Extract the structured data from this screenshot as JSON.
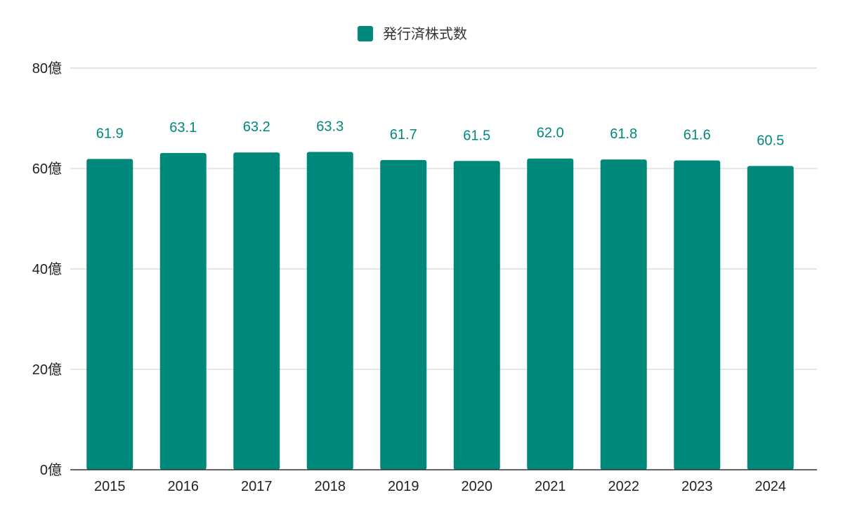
{
  "chart_data": {
    "type": "bar",
    "categories": [
      "2015",
      "2016",
      "2017",
      "2018",
      "2019",
      "2020",
      "2021",
      "2022",
      "2023",
      "2024"
    ],
    "series": [
      {
        "name": "発行済株式数",
        "values": [
          61.9,
          63.1,
          63.2,
          63.3,
          61.7,
          61.5,
          62.0,
          61.8,
          61.6,
          60.5
        ],
        "data_labels": [
          "61.9",
          "63.1",
          "63.2",
          "63.3",
          "61.7",
          "61.5",
          "62.0",
          "61.8",
          "61.6",
          "60.5"
        ],
        "color": "#00897b"
      }
    ],
    "y_ticks": [
      {
        "value": 0,
        "label": "0億"
      },
      {
        "value": 20,
        "label": "20億"
      },
      {
        "value": 40,
        "label": "40億"
      },
      {
        "value": 60,
        "label": "60億"
      },
      {
        "value": 80,
        "label": "80億"
      }
    ],
    "ylim": [
      0,
      80
    ],
    "grid": true,
    "legend_position": "top-center",
    "data_labels": true
  }
}
